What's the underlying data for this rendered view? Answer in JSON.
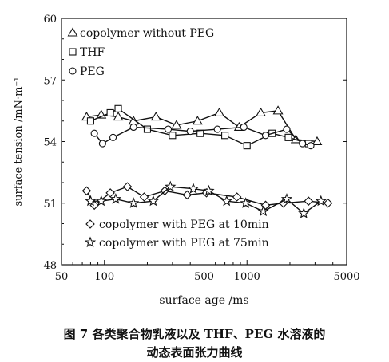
{
  "chart_data": {
    "type": "line",
    "xlabel": "surface age /ms",
    "ylabel": "surface tension /mN·m⁻¹",
    "x_scale": "log",
    "xlim": [
      50,
      5000
    ],
    "ylim": [
      48,
      60
    ],
    "x_ticks": [
      {
        "value": 50,
        "label": "50"
      },
      {
        "value": 100,
        "label": "100"
      },
      {
        "value": 500,
        "label": "500"
      },
      {
        "value": 1000,
        "label": "1000"
      },
      {
        "value": 5000,
        "label": "5000"
      }
    ],
    "y_ticks": [
      {
        "value": 48,
        "label": "48"
      },
      {
        "value": 51,
        "label": "51"
      },
      {
        "value": 54,
        "label": "54"
      },
      {
        "value": 57,
        "label": "57"
      },
      {
        "value": 60,
        "label": "60"
      }
    ],
    "grid": false,
    "series": [
      {
        "name": "copolymer without PEG",
        "marker": "triangle",
        "x": [
          75,
          95,
          125,
          160,
          230,
          320,
          450,
          640,
          880,
          1250,
          1650,
          2200,
          3100
        ],
        "y": [
          55.2,
          55.3,
          55.2,
          55.0,
          55.2,
          54.8,
          55.0,
          55.4,
          54.7,
          55.4,
          55.5,
          54.1,
          54.0
        ]
      },
      {
        "name": "THF",
        "marker": "square",
        "x": [
          80,
          110,
          125,
          200,
          300,
          470,
          700,
          1000,
          1500,
          1950,
          2700
        ],
        "y": [
          55.0,
          55.4,
          55.6,
          54.6,
          54.3,
          54.4,
          54.3,
          53.8,
          54.4,
          54.2,
          53.9
        ]
      },
      {
        "name": "PEG",
        "marker": "circle",
        "x": [
          85,
          97,
          115,
          160,
          280,
          400,
          620,
          950,
          1350,
          1900,
          2450,
          2800
        ],
        "y": [
          54.4,
          53.9,
          54.2,
          54.7,
          54.6,
          54.5,
          54.6,
          54.7,
          54.3,
          54.6,
          53.9,
          53.8
        ]
      },
      {
        "name": "copolymer with PEG at 10min",
        "marker": "diamond",
        "x": [
          75,
          85,
          110,
          145,
          190,
          265,
          380,
          520,
          850,
          1350,
          1800,
          2700,
          3700
        ],
        "y": [
          51.6,
          50.9,
          51.5,
          51.8,
          51.3,
          51.6,
          51.4,
          51.5,
          51.3,
          50.9,
          51.0,
          51.1,
          51.0
        ]
      },
      {
        "name": "copolymer with PEG at 75min",
        "marker": "star",
        "x": [
          80,
          95,
          120,
          160,
          220,
          290,
          420,
          540,
          720,
          980,
          1300,
          1900,
          2500,
          3300
        ],
        "y": [
          51.1,
          51.1,
          51.2,
          51.0,
          51.1,
          51.8,
          51.7,
          51.6,
          51.1,
          51.0,
          50.6,
          51.2,
          50.5,
          51.1
        ]
      }
    ],
    "legend_top": [
      "copolymer without PEG",
      "THF",
      "PEG"
    ],
    "legend_bottom": [
      "copolymer with PEG at 10min",
      "copolymer with PEG at 75min"
    ]
  },
  "caption": {
    "line1": "图 7   各类聚合物乳液以及 THF、PEG 水溶液的",
    "line2": "动态表面张力曲线"
  }
}
